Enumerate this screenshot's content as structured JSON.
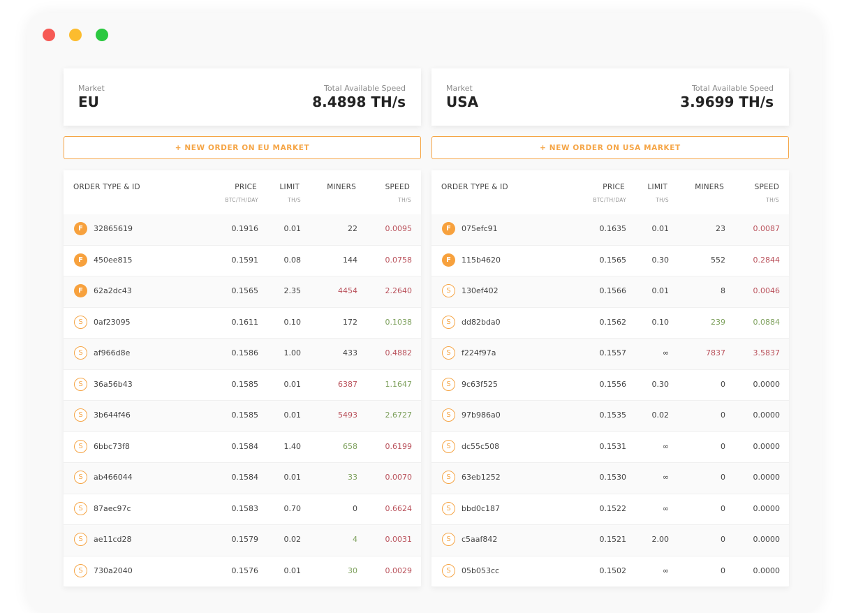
{
  "window": {
    "controls": [
      "close",
      "minimize",
      "maximize"
    ]
  },
  "columns_head": {
    "order": "ORDER TYPE & ID",
    "price": "PRICE",
    "price_unit": "BTC/TH/DAY",
    "limit": "LIMIT",
    "limit_unit": "TH/S",
    "miners": "MINERS",
    "speed": "SPEED",
    "speed_unit": "TH/S"
  },
  "colors": {
    "accent": "#f5a546",
    "green": "#7da05c",
    "red": "#b9505a"
  },
  "markets": [
    {
      "market_label": "Market",
      "name": "EU",
      "speed_label": "Total Available Speed",
      "speed": "8.4898 TH/s",
      "button": "+ NEW ORDER ON EU MARKET",
      "orders": [
        {
          "type": "F",
          "id": "32865619",
          "price": "0.1916",
          "limit": "0.01",
          "miners": "22",
          "miners_color": "",
          "speed": "0.0095",
          "speed_color": "red"
        },
        {
          "type": "F",
          "id": "450ee815",
          "price": "0.1591",
          "limit": "0.08",
          "miners": "144",
          "miners_color": "",
          "speed": "0.0758",
          "speed_color": "red"
        },
        {
          "type": "F",
          "id": "62a2dc43",
          "price": "0.1565",
          "limit": "2.35",
          "miners": "4454",
          "miners_color": "red",
          "speed": "2.2640",
          "speed_color": "red"
        },
        {
          "type": "S",
          "id": "0af23095",
          "price": "0.1611",
          "limit": "0.10",
          "miners": "172",
          "miners_color": "",
          "speed": "0.1038",
          "speed_color": "green"
        },
        {
          "type": "S",
          "id": "af966d8e",
          "price": "0.1586",
          "limit": "1.00",
          "miners": "433",
          "miners_color": "",
          "speed": "0.4882",
          "speed_color": "red"
        },
        {
          "type": "S",
          "id": "36a56b43",
          "price": "0.1585",
          "limit": "0.01",
          "miners": "6387",
          "miners_color": "red",
          "speed": "1.1647",
          "speed_color": "green"
        },
        {
          "type": "S",
          "id": "3b644f46",
          "price": "0.1585",
          "limit": "0.01",
          "miners": "5493",
          "miners_color": "red",
          "speed": "2.6727",
          "speed_color": "green"
        },
        {
          "type": "S",
          "id": "6bbc73f8",
          "price": "0.1584",
          "limit": "1.40",
          "miners": "658",
          "miners_color": "green",
          "speed": "0.6199",
          "speed_color": "red"
        },
        {
          "type": "S",
          "id": "ab466044",
          "price": "0.1584",
          "limit": "0.01",
          "miners": "33",
          "miners_color": "green",
          "speed": "0.0070",
          "speed_color": "red"
        },
        {
          "type": "S",
          "id": "87aec97c",
          "price": "0.1583",
          "limit": "0.70",
          "miners": "0",
          "miners_color": "",
          "speed": "0.6624",
          "speed_color": "red"
        },
        {
          "type": "S",
          "id": "ae11cd28",
          "price": "0.1579",
          "limit": "0.02",
          "miners": "4",
          "miners_color": "green",
          "speed": "0.0031",
          "speed_color": "red"
        },
        {
          "type": "S",
          "id": "730a2040",
          "price": "0.1576",
          "limit": "0.01",
          "miners": "30",
          "miners_color": "green",
          "speed": "0.0029",
          "speed_color": "red"
        }
      ]
    },
    {
      "market_label": "Market",
      "name": "USA",
      "speed_label": "Total Available Speed",
      "speed": "3.9699 TH/s",
      "button": "+ NEW ORDER ON USA MARKET",
      "orders": [
        {
          "type": "F",
          "id": "075efc91",
          "price": "0.1635",
          "limit": "0.01",
          "miners": "23",
          "miners_color": "",
          "speed": "0.0087",
          "speed_color": "red"
        },
        {
          "type": "F",
          "id": "115b4620",
          "price": "0.1565",
          "limit": "0.30",
          "miners": "552",
          "miners_color": "",
          "speed": "0.2844",
          "speed_color": "red"
        },
        {
          "type": "S",
          "id": "130ef402",
          "price": "0.1566",
          "limit": "0.01",
          "miners": "8",
          "miners_color": "",
          "speed": "0.0046",
          "speed_color": "red"
        },
        {
          "type": "S",
          "id": "dd82bda0",
          "price": "0.1562",
          "limit": "0.10",
          "miners": "239",
          "miners_color": "green",
          "speed": "0.0884",
          "speed_color": "green"
        },
        {
          "type": "S",
          "id": "f224f97a",
          "price": "0.1557",
          "limit": "∞",
          "miners": "7837",
          "miners_color": "red",
          "speed": "3.5837",
          "speed_color": "red"
        },
        {
          "type": "S",
          "id": "9c63f525",
          "price": "0.1556",
          "limit": "0.30",
          "miners": "0",
          "miners_color": "",
          "speed": "0.0000",
          "speed_color": ""
        },
        {
          "type": "S",
          "id": "97b986a0",
          "price": "0.1535",
          "limit": "0.02",
          "miners": "0",
          "miners_color": "",
          "speed": "0.0000",
          "speed_color": ""
        },
        {
          "type": "S",
          "id": "dc55c508",
          "price": "0.1531",
          "limit": "∞",
          "miners": "0",
          "miners_color": "",
          "speed": "0.0000",
          "speed_color": ""
        },
        {
          "type": "S",
          "id": "63eb1252",
          "price": "0.1530",
          "limit": "∞",
          "miners": "0",
          "miners_color": "",
          "speed": "0.0000",
          "speed_color": ""
        },
        {
          "type": "S",
          "id": "bbd0c187",
          "price": "0.1522",
          "limit": "∞",
          "miners": "0",
          "miners_color": "",
          "speed": "0.0000",
          "speed_color": ""
        },
        {
          "type": "S",
          "id": "c5aaf842",
          "price": "0.1521",
          "limit": "2.00",
          "miners": "0",
          "miners_color": "",
          "speed": "0.0000",
          "speed_color": ""
        },
        {
          "type": "S",
          "id": "05b053cc",
          "price": "0.1502",
          "limit": "∞",
          "miners": "0",
          "miners_color": "",
          "speed": "0.0000",
          "speed_color": ""
        }
      ]
    }
  ]
}
